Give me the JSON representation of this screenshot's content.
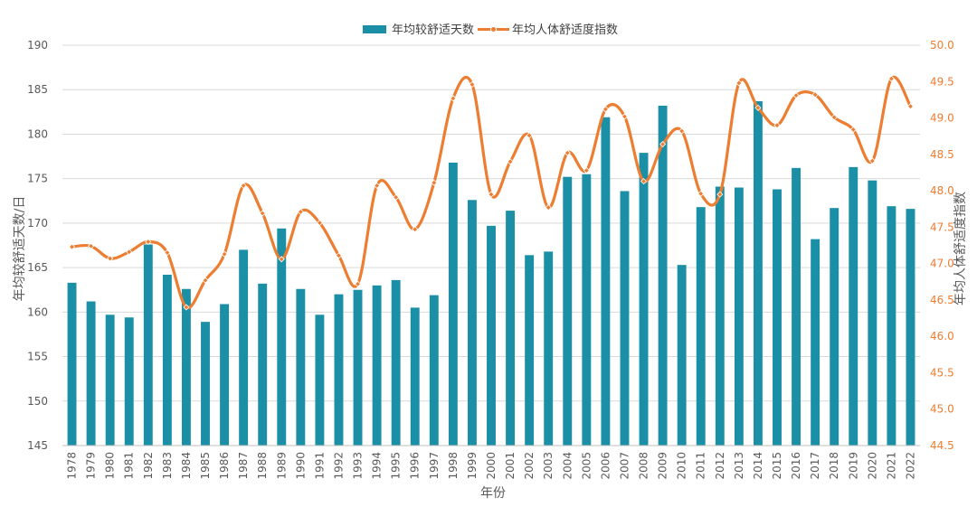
{
  "chart_data": {
    "type": "bar",
    "xlabel": "年份",
    "ylabel": "年均较舒适天数/日",
    "y2label": "年均人体舒适度指数",
    "ylim": [
      145,
      190
    ],
    "y2lim": [
      44.5,
      50.0
    ],
    "yticks": [
      "145",
      "150",
      "155",
      "160",
      "165",
      "170",
      "175",
      "180",
      "185",
      "190"
    ],
    "y2ticks": [
      "44.5",
      "45.0",
      "45.5",
      "46.0",
      "46.5",
      "47.0",
      "47.5",
      "48.0",
      "48.5",
      "49.0",
      "49.5",
      "50.0"
    ],
    "grid": true,
    "legend_position": "top-center",
    "colors": {
      "bar": "#1a8fa6",
      "line": "#ed7d31",
      "grid": "#d9d9d9",
      "y2_ticks": "#ed7d31"
    },
    "categories": [
      "1978",
      "1979",
      "1980",
      "1981",
      "1982",
      "1983",
      "1984",
      "1985",
      "1986",
      "1987",
      "1988",
      "1989",
      "1990",
      "1991",
      "1992",
      "1993",
      "1994",
      "1995",
      "1996",
      "1997",
      "1998",
      "1999",
      "2000",
      "2001",
      "2002",
      "2003",
      "2004",
      "2005",
      "2006",
      "2007",
      "2008",
      "2009",
      "2010",
      "2011",
      "2012",
      "2013",
      "2014",
      "2015",
      "2016",
      "2017",
      "2018",
      "2019",
      "2020",
      "2021",
      "2022"
    ],
    "series": [
      {
        "name": "年均较舒适天数",
        "kind": "bar",
        "axis": "left",
        "values": [
          163.3,
          161.2,
          159.7,
          159.4,
          167.6,
          164.2,
          162.6,
          158.9,
          160.9,
          167.0,
          163.2,
          169.4,
          162.6,
          159.7,
          162.0,
          162.5,
          163.0,
          163.6,
          160.5,
          161.9,
          176.8,
          172.6,
          169.7,
          171.4,
          166.4,
          166.8,
          175.2,
          175.5,
          181.9,
          173.6,
          177.9,
          183.2,
          165.3,
          171.8,
          174.1,
          174.0,
          183.7,
          173.8,
          176.2,
          168.2,
          171.7,
          176.3,
          174.8,
          171.9,
          171.6
        ]
      },
      {
        "name": "年均人体舒适度指数",
        "kind": "line",
        "axis": "right",
        "values": [
          47.23,
          47.24,
          47.07,
          47.16,
          47.3,
          47.15,
          46.4,
          46.77,
          47.13,
          48.07,
          47.69,
          47.06,
          47.71,
          47.56,
          47.11,
          46.72,
          48.07,
          47.91,
          47.47,
          48.11,
          49.27,
          49.46,
          47.95,
          48.4,
          48.76,
          47.77,
          48.52,
          48.28,
          49.12,
          49.02,
          48.13,
          48.64,
          48.82,
          47.96,
          47.95,
          49.48,
          49.14,
          48.9,
          49.31,
          49.32,
          49.01,
          48.84,
          48.41,
          49.54,
          49.16
        ]
      }
    ]
  }
}
